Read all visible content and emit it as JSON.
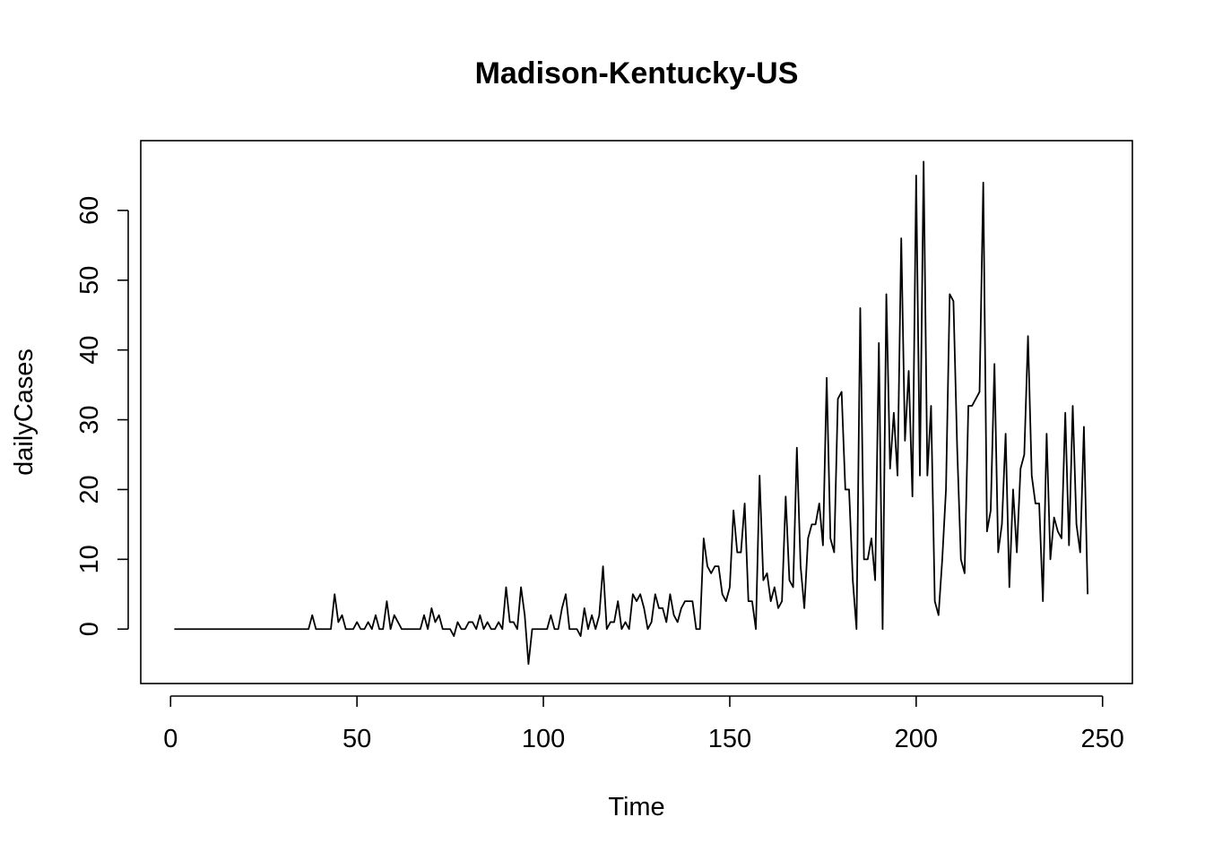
{
  "chart_data": {
    "type": "line",
    "title": "Madison-Kentucky-US",
    "xlabel": "Time",
    "ylabel": "dailyCases",
    "xlim": [
      -8,
      258
    ],
    "ylim": [
      -7.8,
      70.0
    ],
    "x_ticks": [
      0,
      50,
      100,
      150,
      200,
      250
    ],
    "y_ticks": [
      0,
      10,
      20,
      30,
      40,
      50,
      60
    ],
    "grid": false,
    "legend": "none",
    "line_color": "#000000",
    "x_start": 1,
    "values": [
      0,
      0,
      0,
      0,
      0,
      0,
      0,
      0,
      0,
      0,
      0,
      0,
      0,
      0,
      0,
      0,
      0,
      0,
      0,
      0,
      0,
      0,
      0,
      0,
      0,
      0,
      0,
      0,
      0,
      0,
      0,
      0,
      0,
      0,
      0,
      0,
      0,
      2,
      0,
      0,
      0,
      0,
      0,
      5,
      1,
      2,
      0,
      0,
      0,
      1,
      0,
      0,
      1,
      0,
      2,
      0,
      0,
      4,
      0,
      2,
      1,
      0,
      0,
      0,
      0,
      0,
      0,
      2,
      0,
      3,
      1,
      2,
      0,
      0,
      0,
      -1,
      1,
      0,
      0,
      1,
      1,
      0,
      2,
      0,
      1,
      0,
      0,
      1,
      0,
      6,
      1,
      1,
      0,
      6,
      2,
      -5,
      0,
      0,
      0,
      0,
      0,
      2,
      0,
      0,
      3,
      5,
      0,
      0,
      0,
      -1,
      3,
      0,
      2,
      0,
      2,
      9,
      0,
      1,
      1,
      4,
      0,
      1,
      0,
      5,
      4,
      5,
      3,
      0,
      1,
      5,
      3,
      3,
      1,
      5,
      2,
      1,
      3,
      4,
      4,
      4,
      0,
      0,
      13,
      9,
      8,
      9,
      9,
      5,
      4,
      6,
      17,
      11,
      11,
      18,
      4,
      4,
      0,
      22,
      7,
      8,
      4,
      6,
      3,
      4,
      19,
      7,
      6,
      26,
      9,
      3,
      13,
      15,
      15,
      18,
      12,
      36,
      13,
      11,
      33,
      34,
      20,
      20,
      7,
      0,
      46,
      10,
      10,
      13,
      7,
      41,
      0,
      48,
      23,
      31,
      22,
      56,
      27,
      37,
      19,
      65,
      22,
      67,
      22,
      32,
      4,
      2,
      10,
      20,
      48,
      47,
      26,
      10,
      8,
      32,
      32,
      33,
      34,
      64,
      14,
      17,
      38,
      11,
      15,
      28,
      6,
      20,
      11,
      23,
      25,
      42,
      22,
      18,
      18,
      4,
      28,
      10,
      16,
      14,
      13,
      31,
      12,
      32,
      15,
      11,
      29,
      5
    ]
  }
}
